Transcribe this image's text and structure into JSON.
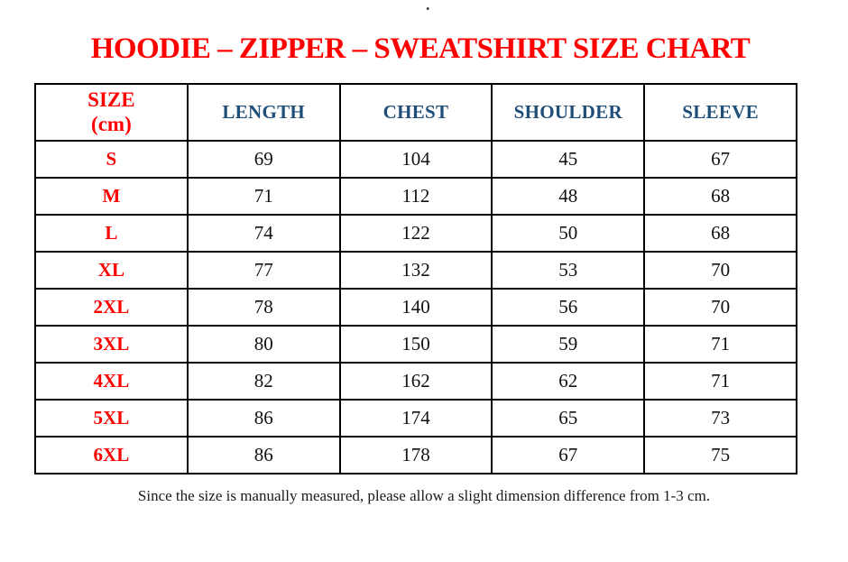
{
  "page": {
    "stray_dot": "."
  },
  "title": {
    "text": "HOODIE – ZIPPER – SWEATSHIRT SIZE CHART"
  },
  "colors": {
    "accent_red": "#fe0000",
    "header_blue": "#1f4e79",
    "border_black": "#000000",
    "body_text": "#111111"
  },
  "table": {
    "header": {
      "size_line1": "SIZE",
      "size_line2": "(cm)",
      "columns": [
        "LENGTH",
        "CHEST",
        "SHOULDER",
        "SLEEVE"
      ]
    },
    "rows": [
      {
        "size": "S",
        "length": "69",
        "chest": "104",
        "shoulder": "45",
        "sleeve": "67"
      },
      {
        "size": "M",
        "length": "71",
        "chest": "112",
        "shoulder": "48",
        "sleeve": "68"
      },
      {
        "size": "L",
        "length": "74",
        "chest": "122",
        "shoulder": "50",
        "sleeve": "68"
      },
      {
        "size": "XL",
        "length": "77",
        "chest": "132",
        "shoulder": "53",
        "sleeve": "70"
      },
      {
        "size": "2XL",
        "length": "78",
        "chest": "140",
        "shoulder": "56",
        "sleeve": "70"
      },
      {
        "size": "3XL",
        "length": "80",
        "chest": "150",
        "shoulder": "59",
        "sleeve": "71"
      },
      {
        "size": "4XL",
        "length": "82",
        "chest": "162",
        "shoulder": "62",
        "sleeve": "71"
      },
      {
        "size": "5XL",
        "length": "86",
        "chest": "174",
        "shoulder": "65",
        "sleeve": "73"
      },
      {
        "size": "6XL",
        "length": "86",
        "chest": "178",
        "shoulder": "67",
        "sleeve": "75"
      }
    ]
  },
  "footer": {
    "note": "Since the size is manually measured, please allow a slight dimension difference from 1-3 cm."
  }
}
